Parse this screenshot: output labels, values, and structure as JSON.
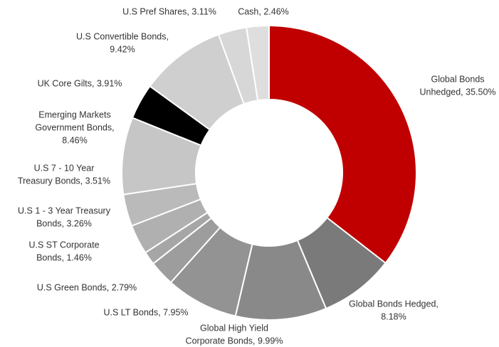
{
  "chart_data": {
    "type": "donut",
    "labels": [
      [
        "Global Bonds",
        "Unhedged, 35.50%"
      ],
      [
        "Global Bonds Hedged,",
        "8.18%"
      ],
      [
        "Global High Yield",
        "Corporate Bonds, 9.99%"
      ],
      [
        "U.S LT Bonds, 7.95%"
      ],
      [
        "U.S Green Bonds, 2.79%"
      ],
      [
        "U.S  ST Corporate",
        "Bonds, 1.46%"
      ],
      [
        "U.S 1 - 3 Year Treasury",
        "Bonds, 3.26%"
      ],
      [
        "U.S  7 - 10 Year",
        "Treasury Bonds, 3.51%"
      ],
      [
        "Emerging Markets",
        "Government Bonds,",
        "8.46%"
      ],
      [
        "UK Core Gilts, 3.91%"
      ],
      [
        "U.S Convertible Bonds,",
        "9.42%"
      ],
      [
        "U.S Pref Shares, 3.11%"
      ],
      [
        "Cash, 2.46%"
      ]
    ],
    "values": [
      35.5,
      8.18,
      9.99,
      7.95,
      2.79,
      1.46,
      3.26,
      3.51,
      8.46,
      3.91,
      9.42,
      3.11,
      2.46
    ],
    "colors": [
      "#c00000",
      "#7a7a7a",
      "#898989",
      "#939393",
      "#9d9d9d",
      "#a6a6a6",
      "#b0b0b0",
      "#bababa",
      "#c6c6c6",
      "#000000",
      "#cfcfcf",
      "#d7d7d7",
      "#dedede"
    ]
  }
}
